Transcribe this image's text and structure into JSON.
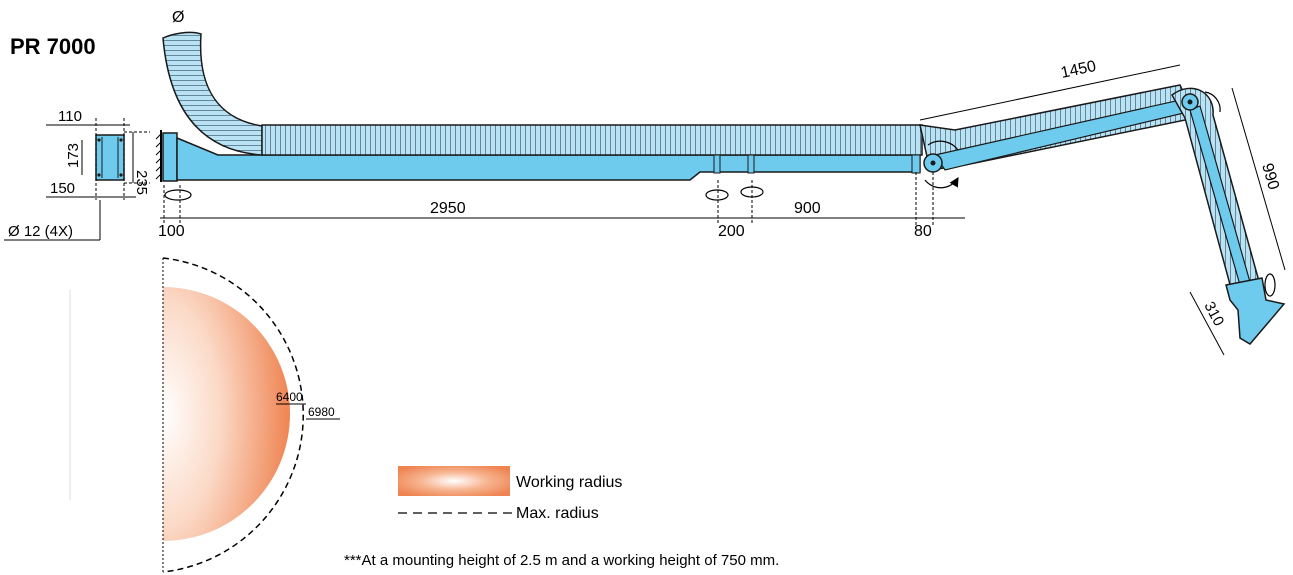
{
  "title": "PR 7000",
  "diameter_symbol": "Ø",
  "dimensions": {
    "bracket_width": "110",
    "bracket_inner": "173",
    "bracket_height": "235",
    "bracket_depth": "150",
    "bolt_holes": "Ø 12 (4X)",
    "offset_mount": "100",
    "main_arm": "2950",
    "joint_gap": "200",
    "second_arm": "900",
    "end_offset": "80",
    "upper_arm": "1450",
    "lower_arm": "990",
    "hood": "310"
  },
  "radius": {
    "working": "6400",
    "max": "6980"
  },
  "legend": {
    "working_label": "Working radius",
    "max_label": "Max. radius"
  },
  "footnote": "***At a mounting height of 2.5 m and a working height of 750 mm.",
  "colors": {
    "arm_fill": "#6ecbee",
    "hose_fill": "#b9e3f5",
    "working_radius": "#f08a5d",
    "outline": "#1a1a1a"
  }
}
